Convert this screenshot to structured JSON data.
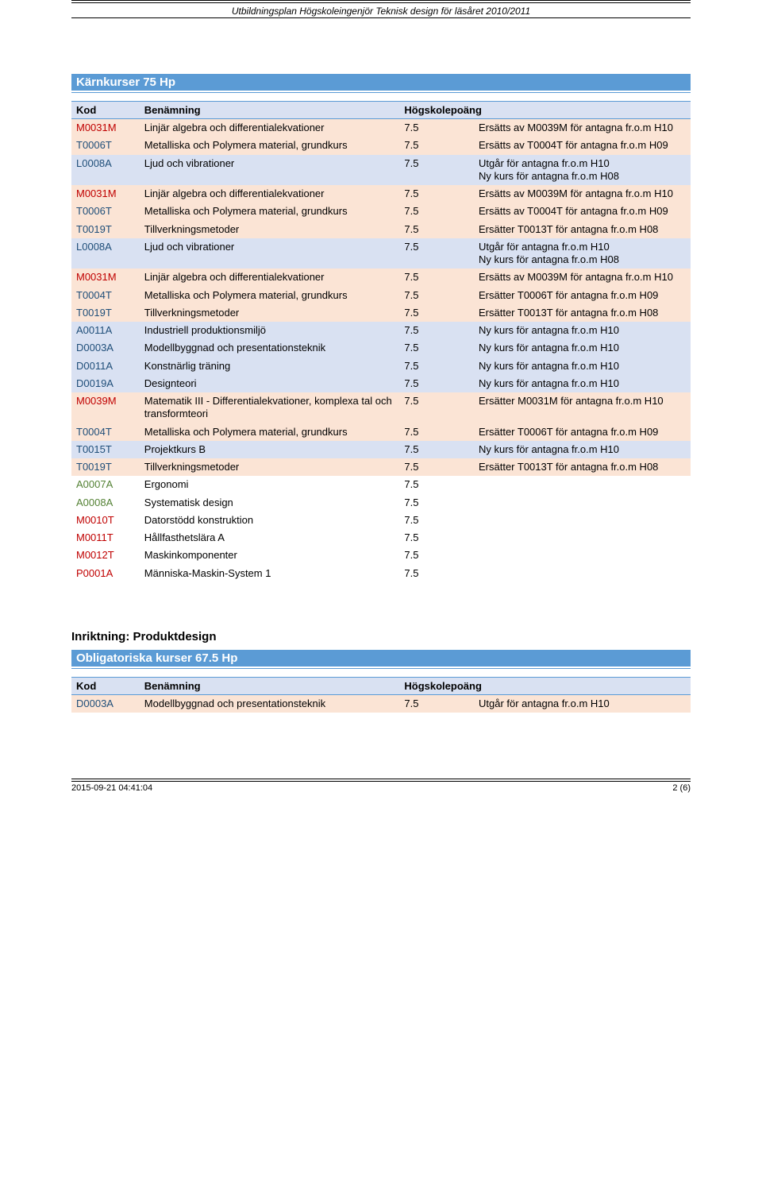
{
  "header_text": "Utbildningsplan Högskoleingenjör Teknisk design för läsåret 2010/2011",
  "section1": {
    "title": "Kärnkurser 75 Hp",
    "columns": [
      "Kod",
      "Benämning",
      "Högskolepoäng",
      ""
    ],
    "col_widths": [
      "11%",
      "42%",
      "12%",
      "35%"
    ],
    "header_bg": "#d9e1f2",
    "header_border": "#5b9bd5",
    "rows": [
      {
        "bg": "#fbe4d5",
        "cells": [
          "M0031M",
          "Linjär algebra och differentialekvationer",
          "7.5",
          "Ersätts av M0039M för antagna fr.o.m H10"
        ]
      },
      {
        "bg": "#fbe4d5",
        "cells": [
          "T0006T",
          "Metalliska och Polymera material, grundkurs",
          "7.5",
          "Ersätts av T0004T för antagna fr.o.m H09"
        ]
      },
      {
        "bg": "#d9e1f2",
        "cells": [
          "L0008A",
          "Ljud och vibrationer",
          "7.5",
          "Utgår för antagna fr.o.m H10\nNy kurs för antagna fr.o.m H08"
        ]
      },
      {
        "bg": "#fbe4d5",
        "cells": [
          "M0031M",
          "Linjär algebra och differentialekvationer",
          "7.5",
          "Ersätts av M0039M för antagna fr.o.m H10"
        ]
      },
      {
        "bg": "#fbe4d5",
        "cells": [
          "T0006T",
          "Metalliska och Polymera material, grundkurs",
          "7.5",
          "Ersätts av T0004T för antagna fr.o.m H09"
        ]
      },
      {
        "bg": "#fbe4d5",
        "cells": [
          "T0019T",
          "Tillverkningsmetoder",
          "7.5",
          "Ersätter T0013T för antagna fr.o.m H08"
        ]
      },
      {
        "bg": "#d9e1f2",
        "cells": [
          "L0008A",
          "Ljud och vibrationer",
          "7.5",
          "Utgår för antagna fr.o.m H10\nNy kurs för antagna fr.o.m H08"
        ]
      },
      {
        "bg": "#fbe4d5",
        "cells": [
          "M0031M",
          "Linjär algebra och differentialekvationer",
          "7.5",
          "Ersätts av M0039M för antagna fr.o.m H10"
        ]
      },
      {
        "bg": "#fbe4d5",
        "cells": [
          "T0004T",
          "Metalliska och Polymera material, grundkurs",
          "7.5",
          "Ersätter T0006T för antagna fr.o.m H09"
        ]
      },
      {
        "bg": "#fbe4d5",
        "cells": [
          "T0019T",
          "Tillverkningsmetoder",
          "7.5",
          "Ersätter T0013T för antagna fr.o.m H08"
        ]
      },
      {
        "bg": "#d9e1f2",
        "cells": [
          "A0011A",
          "Industriell produktionsmiljö",
          "7.5",
          "Ny kurs för antagna fr.o.m H10"
        ]
      },
      {
        "bg": "#d9e1f2",
        "cells": [
          "D0003A",
          "Modellbyggnad och presentationsteknik",
          "7.5",
          "Ny kurs för antagna fr.o.m H10"
        ]
      },
      {
        "bg": "#d9e1f2",
        "cells": [
          "D0011A",
          "Konstnärlig träning",
          "7.5",
          "Ny kurs för antagna fr.o.m H10"
        ]
      },
      {
        "bg": "#d9e1f2",
        "cells": [
          "D0019A",
          "Designteori",
          "7.5",
          "Ny kurs för antagna fr.o.m H10"
        ]
      },
      {
        "bg": "#fbe4d5",
        "cells": [
          "M0039M",
          "Matematik III - Differentialekvationer, komplexa tal och transformteori",
          "7.5",
          "Ersätter M0031M för antagna fr.o.m H10"
        ]
      },
      {
        "bg": "#fbe4d5",
        "cells": [
          "T0004T",
          "Metalliska och Polymera material, grundkurs",
          "7.5",
          "Ersätter T0006T för antagna fr.o.m H09"
        ]
      },
      {
        "bg": "#d9e1f2",
        "cells": [
          "T0015T",
          "Projektkurs B",
          "7.5",
          "Ny kurs för antagna fr.o.m H10"
        ]
      },
      {
        "bg": "#fbe4d5",
        "cells": [
          "T0019T",
          "Tillverkningsmetoder",
          "7.5",
          "Ersätter T0013T för antagna fr.o.m H08"
        ]
      },
      {
        "bg": "#ffffff",
        "cells": [
          "A0007A",
          "Ergonomi",
          "7.5",
          ""
        ]
      },
      {
        "bg": "#ffffff",
        "cells": [
          "A0008A",
          "Systematisk design",
          "7.5",
          ""
        ]
      },
      {
        "bg": "#ffffff",
        "cells": [
          "M0010T",
          "Datorstödd konstruktion",
          "7.5",
          ""
        ]
      },
      {
        "bg": "#ffffff",
        "cells": [
          "M0011T",
          "Hållfasthetslära A",
          "7.5",
          ""
        ]
      },
      {
        "bg": "#ffffff",
        "cells": [
          "M0012T",
          "Maskinkomponenter",
          "7.5",
          ""
        ]
      },
      {
        "bg": "#ffffff",
        "cells": [
          "P0001A",
          "Människa-Maskin-System 1",
          "7.5",
          ""
        ]
      }
    ],
    "code_colors": {
      "M": "#c00000",
      "T": "#1f4e79",
      "L": "#1f4e79",
      "A": "#548235",
      "D": "#1f4e79",
      "P": "#c00000"
    },
    "code_color_overrides": {
      "A0011A": "#1f4e79",
      "A0007A": "#548235",
      "A0008A": "#548235"
    }
  },
  "section2": {
    "heading": "Inriktning: Produktdesign",
    "title": "Obligatoriska kurser 67.5 Hp",
    "columns": [
      "Kod",
      "Benämning",
      "Högskolepoäng",
      ""
    ],
    "rows": [
      {
        "bg": "#fbe4d5",
        "cells": [
          "D0003A",
          "Modellbyggnad och presentationsteknik",
          "7.5",
          "Utgår för antagna fr.o.m H10"
        ]
      }
    ]
  },
  "footer": {
    "timestamp": "2015-09-21 04:41:04",
    "page": "2 (6)"
  },
  "palette": {
    "title_bar_bg": "#5b9bd5",
    "title_bar_fg": "#ffffff",
    "row_orange": "#fbe4d5",
    "row_blue": "#d9e1f2",
    "row_white": "#ffffff"
  }
}
